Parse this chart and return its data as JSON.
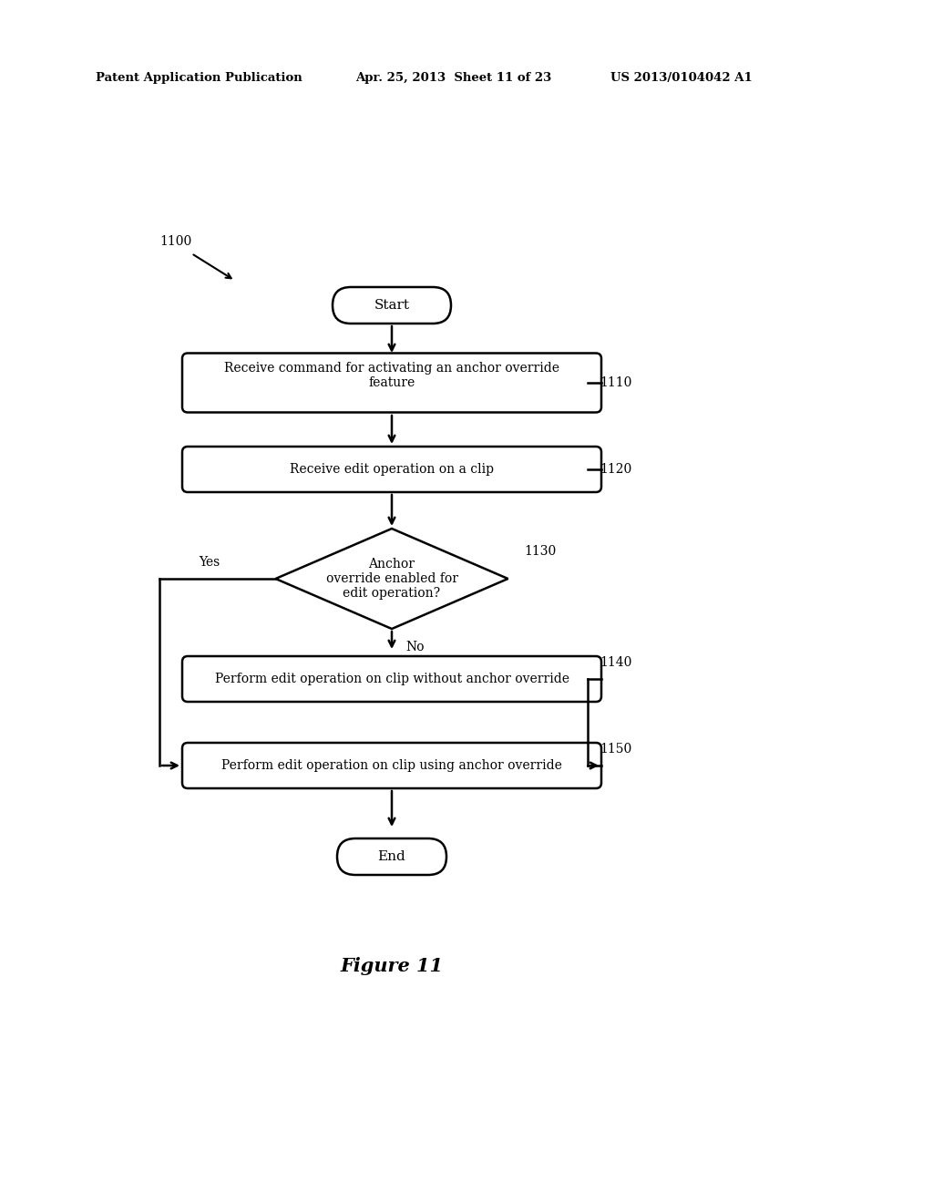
{
  "bg_color": "#ffffff",
  "text_color": "#000000",
  "header_left": "Patent Application Publication",
  "header_mid": "Apr. 25, 2013  Sheet 11 of 23",
  "header_right": "US 2013/0104042 A1",
  "figure_label": "Figure 11",
  "label_1100": "1100",
  "label_1110": "1110",
  "label_1120": "1120",
  "label_1130": "1130",
  "label_1140": "1140",
  "label_1150": "1150",
  "start_text": "Start",
  "end_text": "End",
  "box1_text": "Receive command for activating an anchor override\nfeature",
  "box2_text": "Receive edit operation on a clip",
  "diamond_text": "Anchor\noverride enabled for\nedit operation?",
  "box3_text": "Perform edit operation on clip without anchor override",
  "box4_text": "Perform edit operation on clip using anchor override",
  "yes_label": "Yes",
  "no_label": "No"
}
